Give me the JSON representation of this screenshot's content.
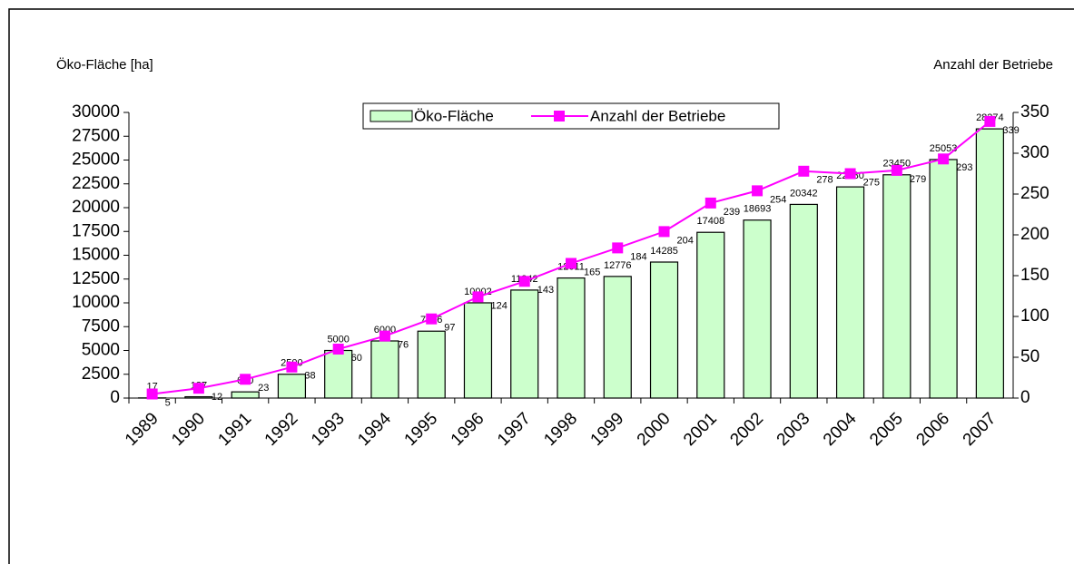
{
  "chart_data": {
    "type": "bar",
    "y_label": "Öko-Fläche [ha]",
    "y2_label": "Anzahl der Betriebe",
    "categories": [
      "1989",
      "1990",
      "1991",
      "1992",
      "1993",
      "1994",
      "1995",
      "1996",
      "1997",
      "1998",
      "1999",
      "2000",
      "2001",
      "2002",
      "2003",
      "2004",
      "2005",
      "2006",
      "2007"
    ],
    "series": [
      {
        "name": "Öko-Fläche",
        "type": "bar",
        "color": "#ccffcc",
        "values": [
          17,
          137,
          650,
          2500,
          5000,
          6000,
          7026,
          10002,
          11342,
          12611,
          12776,
          14285,
          17408,
          18693,
          20342,
          22180,
          23450,
          25053,
          28274
        ]
      },
      {
        "name": "Anzahl der Betriebe",
        "type": "line",
        "axis": "y2",
        "color": "#ff00ff",
        "values": [
          5,
          12,
          23,
          38,
          60,
          76,
          97,
          124,
          143,
          165,
          184,
          204,
          239,
          254,
          278,
          275,
          279,
          293,
          339
        ]
      }
    ],
    "ylim": [
      0,
      30000
    ],
    "yticks": [
      0,
      2500,
      5000,
      7500,
      10000,
      12500,
      15000,
      17500,
      20000,
      22500,
      25000,
      27500,
      30000
    ],
    "y2lim": [
      0,
      350
    ],
    "y2ticks": [
      0,
      50,
      100,
      150,
      200,
      250,
      300,
      350
    ],
    "legend": "top"
  }
}
